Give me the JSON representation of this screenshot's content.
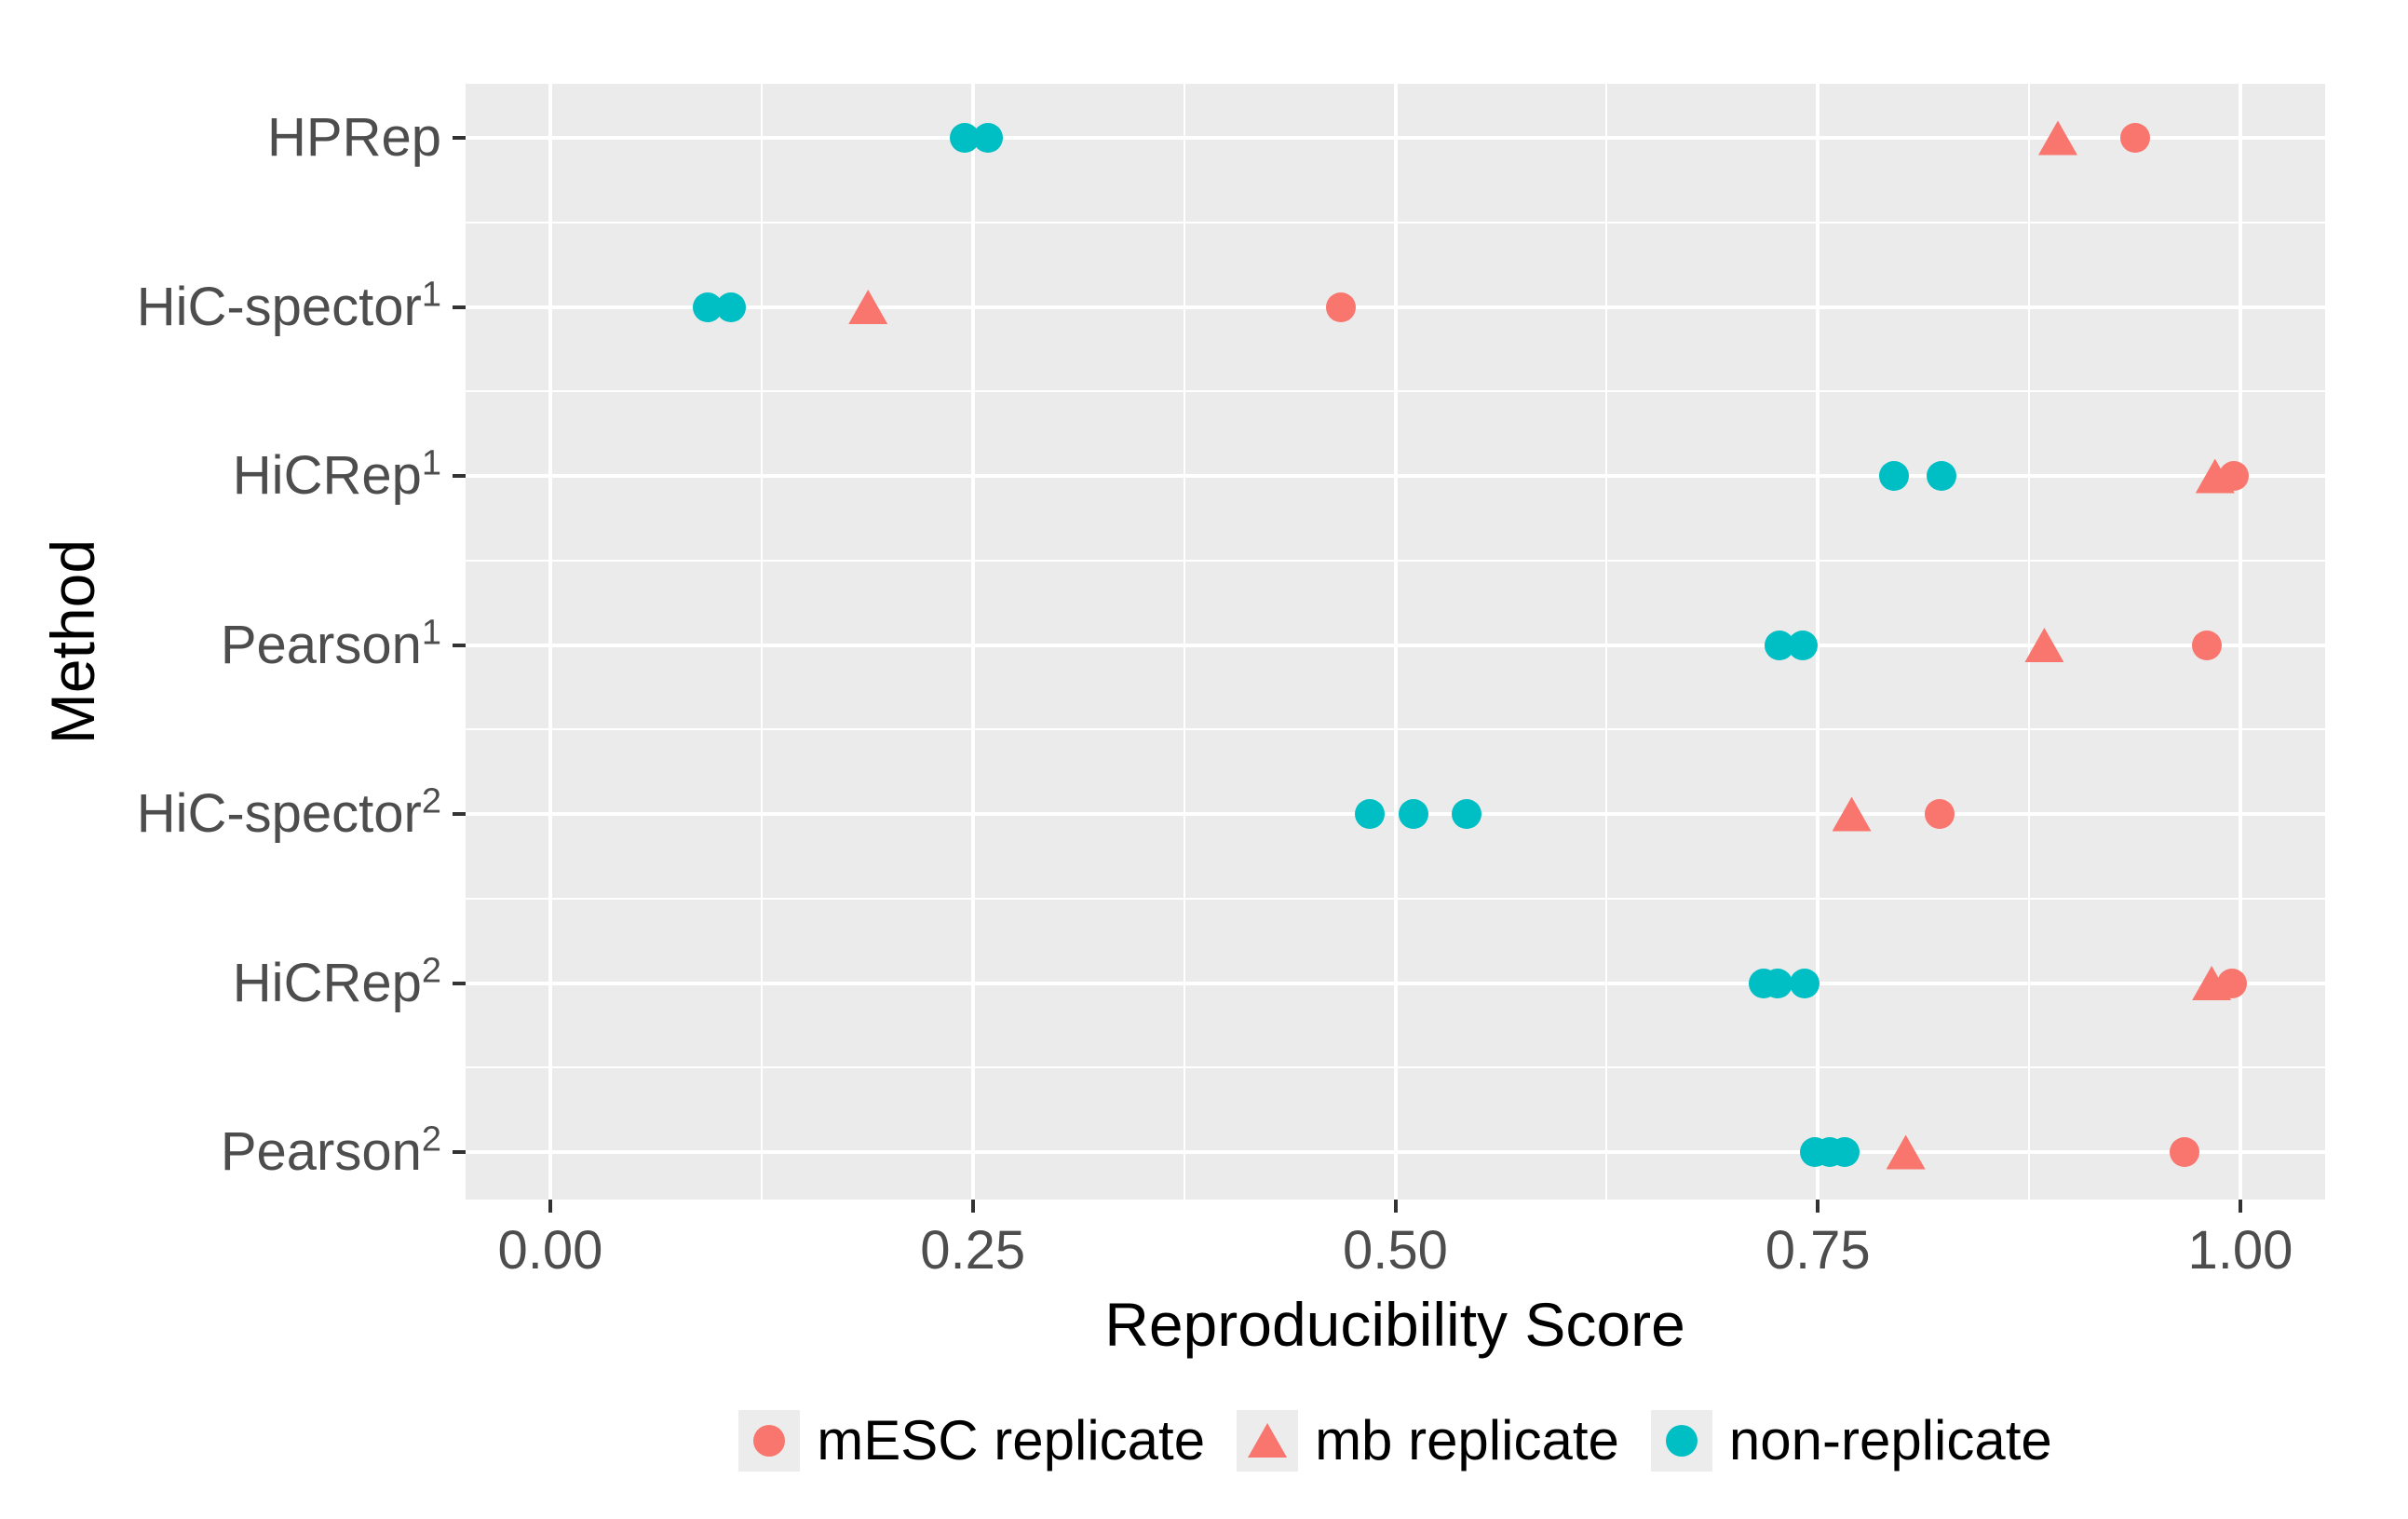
{
  "chart_data": {
    "type": "scatter",
    "title": "",
    "xlabel": "Reproducibility Score",
    "ylabel": "Method",
    "xlim": [
      0,
      1
    ],
    "grid": "on",
    "panel_background": "#EBEBEB",
    "gridline_color": "#FFFFFF",
    "axis_text_color": "#4D4D4D",
    "colors": {
      "replicate": "#F8766D",
      "non_replicate": "#00BFC4"
    },
    "x_ticks": [
      {
        "value": 0.0,
        "label": "0.00"
      },
      {
        "value": 0.25,
        "label": "0.25"
      },
      {
        "value": 0.5,
        "label": "0.50"
      },
      {
        "value": 0.75,
        "label": "0.75"
      },
      {
        "value": 1.0,
        "label": "1.00"
      }
    ],
    "categories": [
      {
        "base": "HPRep",
        "sup": ""
      },
      {
        "base": "HiC-spector",
        "sup": "1"
      },
      {
        "base": "HiCRep",
        "sup": "1"
      },
      {
        "base": "Pearson",
        "sup": "1"
      },
      {
        "base": "HiC-spector",
        "sup": "2"
      },
      {
        "base": "HiCRep",
        "sup": "2"
      },
      {
        "base": "Pearson",
        "sup": "2"
      }
    ],
    "series": [
      {
        "name": "non-replicate",
        "marker": "circle",
        "color": "#00BFC4",
        "values_by_category": [
          [
            0.245,
            0.259
          ],
          [
            0.093,
            0.107
          ],
          [
            0.795,
            0.823
          ],
          [
            0.727,
            0.741
          ],
          [
            0.485,
            0.511,
            0.542
          ],
          [
            0.718,
            0.726,
            0.742
          ],
          [
            0.748,
            0.757,
            0.766
          ]
        ]
      },
      {
        "name": "mb replicate",
        "marker": "triangle",
        "color": "#F8766D",
        "values_by_category": [
          [
            0.892
          ],
          [
            0.188
          ],
          [
            0.985
          ],
          [
            0.884
          ],
          [
            0.77
          ],
          [
            0.983
          ],
          [
            0.802
          ]
        ]
      },
      {
        "name": "mESC replicate",
        "marker": "circle",
        "color": "#F8766D",
        "values_by_category": [
          [
            0.938
          ],
          [
            0.468
          ],
          [
            0.996
          ],
          [
            0.98
          ],
          [
            0.822
          ],
          [
            0.995
          ],
          [
            0.967
          ]
        ]
      }
    ],
    "legend_items": [
      {
        "label": "mESC replicate",
        "marker": "circle",
        "color": "#F8766D"
      },
      {
        "label": "mb replicate",
        "marker": "triangle",
        "color": "#F8766D"
      },
      {
        "label": "non-replicate",
        "marker": "circle",
        "color": "#00BFC4"
      }
    ],
    "legend_position": "bottom"
  }
}
